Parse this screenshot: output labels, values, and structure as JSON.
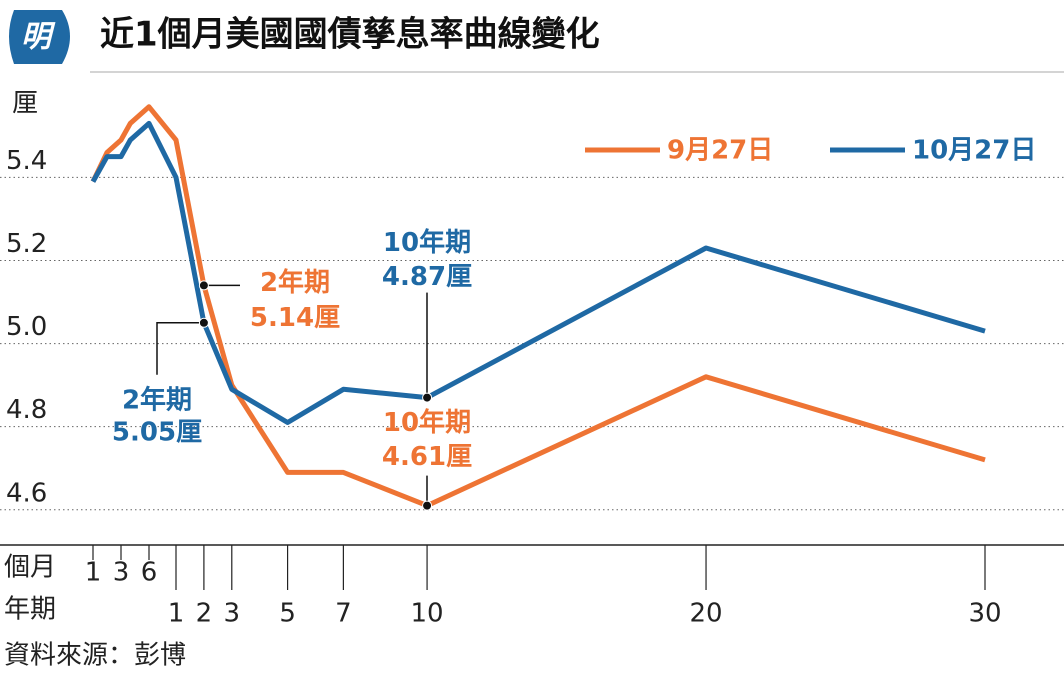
{
  "logo": "明",
  "chart_data": {
    "type": "line",
    "title": "近1個月美國國債孳息率曲線變化",
    "y_unit": "厘",
    "x": [
      1,
      2,
      3,
      4,
      6,
      12,
      24,
      36,
      60,
      84,
      120,
      240,
      360
    ],
    "xticks_months_label": "個月",
    "xticks_months": [
      1,
      3,
      6
    ],
    "xticks_years_label": "年期",
    "xticks_years": [
      {
        "value": 12,
        "label": "1"
      },
      {
        "value": 24,
        "label": "2"
      },
      {
        "value": 36,
        "label": "3"
      },
      {
        "value": 60,
        "label": "5"
      },
      {
        "value": 84,
        "label": "7"
      },
      {
        "value": 120,
        "label": "10"
      },
      {
        "value": 240,
        "label": "20"
      },
      {
        "value": 360,
        "label": "30"
      }
    ],
    "ylim": [
      4.52,
      5.62
    ],
    "yticks": [
      4.6,
      4.8,
      {
        "value": 5,
        "label": "5.0"
      },
      5.2,
      5.4
    ],
    "grid": true,
    "legend": "top-right",
    "series": [
      {
        "name": "9月27日",
        "color": "#ee7434",
        "values": [
          5.39,
          5.46,
          5.49,
          5.53,
          5.57,
          5.49,
          5.14,
          4.9,
          4.69,
          4.69,
          4.61,
          4.92,
          4.72
        ],
        "value_label_titles": [
          null,
          null,
          null,
          null,
          null,
          null,
          "2年期",
          null,
          null,
          null,
          "10年期",
          null,
          null
        ],
        "value_labels": [
          null,
          null,
          null,
          null,
          null,
          null,
          "5.14厘",
          null,
          null,
          null,
          "4.61厘",
          null,
          null
        ]
      },
      {
        "name": "10月27日",
        "color": "#1f69a4",
        "values": [
          5.39,
          5.45,
          5.45,
          5.49,
          5.53,
          5.4,
          5.05,
          4.89,
          4.81,
          4.89,
          4.87,
          5.23,
          5.03
        ],
        "value_label_titles": [
          null,
          null,
          null,
          null,
          null,
          null,
          "2年期",
          null,
          null,
          null,
          "10年期",
          null,
          null
        ],
        "value_labels": [
          null,
          null,
          null,
          null,
          null,
          null,
          "5.05厘",
          null,
          null,
          null,
          "4.87厘",
          null,
          null
        ]
      }
    ]
  },
  "source": "資料來源：彭博"
}
